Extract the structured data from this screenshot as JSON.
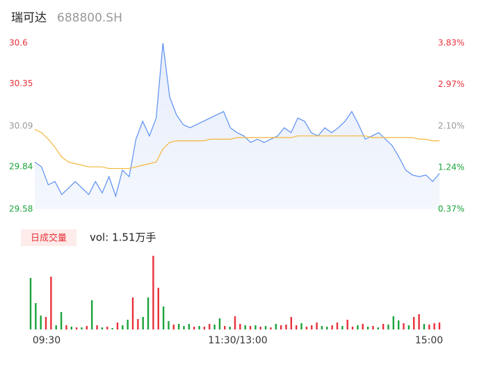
{
  "chart_data": [
    {
      "type": "line",
      "title": "瑞可达",
      "subtitle": "688800.SH",
      "x": [
        0,
        4,
        8,
        12,
        16,
        20,
        24,
        28,
        32,
        36,
        40,
        44,
        48,
        52,
        56,
        60,
        64,
        68,
        72,
        76,
        80,
        84,
        88,
        92,
        96,
        100,
        104,
        108,
        112,
        116,
        120,
        124,
        128,
        132,
        136,
        140,
        144,
        148,
        152,
        156,
        160,
        164,
        168,
        172,
        176,
        180,
        184,
        188,
        192,
        196,
        200,
        204,
        208,
        212,
        216,
        220,
        224,
        228,
        232,
        236,
        240
      ],
      "xlim": [
        0,
        240
      ],
      "series": [
        {
          "name": "price",
          "color": "#5b8ff0",
          "values": [
            29.87,
            29.84,
            29.73,
            29.75,
            29.67,
            29.71,
            29.75,
            29.71,
            29.67,
            29.75,
            29.68,
            29.78,
            29.66,
            29.82,
            29.78,
            30.01,
            30.12,
            30.03,
            30.14,
            30.6,
            30.27,
            30.16,
            30.1,
            30.08,
            30.1,
            30.12,
            30.14,
            30.16,
            30.18,
            30.08,
            30.05,
            30.03,
            29.99,
            30.01,
            29.99,
            30.01,
            30.03,
            30.08,
            30.05,
            30.14,
            30.12,
            30.05,
            30.03,
            30.08,
            30.05,
            30.08,
            30.12,
            30.18,
            30.1,
            30.01,
            30.03,
            30.05,
            30.01,
            29.97,
            29.9,
            29.82,
            29.79,
            29.78,
            29.79,
            29.75,
            29.8
          ]
        },
        {
          "name": "average",
          "color": "#f5b638",
          "values": [
            30.07,
            30.05,
            30.01,
            29.96,
            29.9,
            29.87,
            29.86,
            29.85,
            29.84,
            29.84,
            29.84,
            29.83,
            29.83,
            29.83,
            29.83,
            29.84,
            29.85,
            29.86,
            29.87,
            29.95,
            29.99,
            30.0,
            30.0,
            30.0,
            30.0,
            30.0,
            30.01,
            30.01,
            30.01,
            30.01,
            30.02,
            30.02,
            30.02,
            30.02,
            30.02,
            30.02,
            30.02,
            30.02,
            30.02,
            30.03,
            30.03,
            30.03,
            30.03,
            30.03,
            30.03,
            30.03,
            30.03,
            30.03,
            30.03,
            30.03,
            30.02,
            30.02,
            30.02,
            30.02,
            30.02,
            30.02,
            30.02,
            30.01,
            30.01,
            30.0,
            30.0
          ]
        }
      ],
      "ylim": [
        29.58,
        30.6
      ],
      "yticks": [
        30.6,
        30.35,
        30.09,
        29.84,
        29.58
      ],
      "ytick_colors": [
        "#e8303a",
        "#e8303a",
        "#999999",
        "#1aa33b",
        "#1aa33b"
      ],
      "y2lim": [
        0.37,
        3.83
      ],
      "y2ticks": [
        {
          "value": 3.83,
          "label": "3.83%"
        },
        {
          "value": 2.97,
          "label": "2.97%"
        },
        {
          "value": 2.1,
          "label": "2.10%"
        },
        {
          "value": 1.24,
          "label": "1.24%"
        },
        {
          "value": 0.37,
          "label": "0.37%"
        }
      ],
      "y2tick_colors": [
        "#e8303a",
        "#e8303a",
        "#999999",
        "#1aa33b",
        "#1aa33b"
      ]
    },
    {
      "type": "bar",
      "badge": "日成交量",
      "summary": "vol: 1.51万手",
      "x": [
        0,
        3,
        6,
        9,
        12,
        15,
        18,
        21,
        24,
        27,
        30,
        33,
        36,
        39,
        42,
        45,
        48,
        51,
        54,
        57,
        60,
        63,
        66,
        69,
        72,
        75,
        78,
        81,
        84,
        87,
        90,
        93,
        96,
        99,
        102,
        105,
        108,
        111,
        114,
        117,
        120,
        123,
        126,
        129,
        132,
        135,
        138,
        141,
        144,
        147,
        150,
        153,
        156,
        159,
        162,
        165,
        168,
        171,
        174,
        177,
        180,
        183,
        186,
        189,
        192,
        195,
        198,
        201,
        204,
        207,
        210,
        213,
        216,
        219,
        222,
        225,
        228,
        231,
        234,
        237,
        240
      ],
      "values": [
        740,
        380,
        200,
        180,
        760,
        60,
        250,
        60,
        40,
        30,
        30,
        50,
        420,
        60,
        30,
        40,
        20,
        100,
        60,
        140,
        460,
        150,
        180,
        460,
        1060,
        600,
        330,
        120,
        70,
        80,
        50,
        80,
        40,
        50,
        40,
        80,
        70,
        160,
        50,
        40,
        190,
        80,
        60,
        50,
        60,
        40,
        50,
        30,
        80,
        60,
        70,
        180,
        60,
        90,
        40,
        60,
        100,
        50,
        40,
        60,
        100,
        50,
        140,
        40,
        60,
        80,
        40,
        50,
        30,
        80,
        70,
        190,
        130,
        90,
        60,
        180,
        220,
        80,
        70,
        90,
        100
      ],
      "colors": [
        "#1aa33b",
        "#1aa33b",
        "#1aa33b",
        "#e8303a",
        "#e8303a",
        "#1aa33b",
        "#1aa33b",
        "#e8303a",
        "#1aa33b",
        "#e8303a",
        "#1aa33b",
        "#e8303a",
        "#1aa33b",
        "#e8303a",
        "#1aa33b",
        "#e8303a",
        "#1aa33b",
        "#e8303a",
        "#1aa33b",
        "#1aa33b",
        "#e8303a",
        "#e8303a",
        "#1aa33b",
        "#1aa33b",
        "#e8303a",
        "#e8303a",
        "#1aa33b",
        "#1aa33b",
        "#e8303a",
        "#1aa33b",
        "#1aa33b",
        "#1aa33b",
        "#e8303a",
        "#1aa33b",
        "#e8303a",
        "#e8303a",
        "#1aa33b",
        "#1aa33b",
        "#e8303a",
        "#1aa33b",
        "#e8303a",
        "#e8303a",
        "#1aa33b",
        "#e8303a",
        "#1aa33b",
        "#e8303a",
        "#1aa33b",
        "#e8303a",
        "#1aa33b",
        "#e8303a",
        "#e8303a",
        "#e8303a",
        "#e8303a",
        "#1aa33b",
        "#e8303a",
        "#e8303a",
        "#e8303a",
        "#1aa33b",
        "#1aa33b",
        "#e8303a",
        "#e8303a",
        "#1aa33b",
        "#e8303a",
        "#e8303a",
        "#1aa33b",
        "#e8303a",
        "#1aa33b",
        "#e8303a",
        "#1aa33b",
        "#e8303a",
        "#1aa33b",
        "#1aa33b",
        "#1aa33b",
        "#e8303a",
        "#1aa33b",
        "#e8303a",
        "#e8303a",
        "#1aa33b",
        "#e8303a",
        "#e8303a",
        "#e8303a"
      ],
      "xlim": [
        0,
        240
      ],
      "ylim": [
        0,
        1100
      ],
      "xticks": [
        {
          "value": 0,
          "label": "09:30"
        },
        {
          "value": 120,
          "label": "11:30/13:00"
        },
        {
          "value": 240,
          "label": "15:00"
        }
      ]
    }
  ]
}
